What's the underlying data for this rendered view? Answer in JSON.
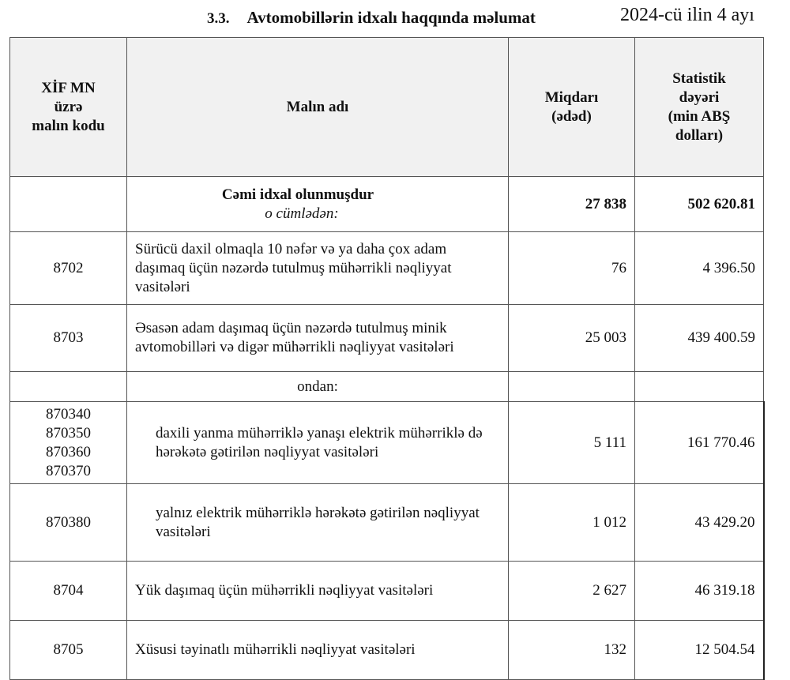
{
  "header": {
    "section_number": "3.3.",
    "title": "Avtomobillərin idxalı haqqında məlumat",
    "period": "2024-cü ilin 4 ayı"
  },
  "columns": [
    {
      "lines": [
        "XİF MN",
        "üzrə",
        "malın kodu"
      ]
    },
    {
      "lines": [
        "Malın adı"
      ]
    },
    {
      "lines": [
        "Miqdarı",
        "(ədəd)"
      ]
    },
    {
      "lines": [
        "Statistik",
        "dəyəri",
        "(min ABŞ",
        "dolları)"
      ]
    }
  ],
  "total": {
    "label": "Cəmi  idxal  olunmuşdur",
    "sublabel": "o cümlədən:",
    "quantity": "27 838",
    "value": "502 620.81"
  },
  "rows": [
    {
      "code": "8702",
      "name": "Sürücü daxil olmaqla 10 nəfər və ya daha çox adam daşımaq üçün nəzərdə tutulmuş mühərrikli nəqliyyat vasitələri",
      "quantity": "76",
      "value": "4 396.50"
    },
    {
      "code": "8703",
      "name": "Əsasən adam daşımaq üçün nəzərdə tutulmuş minik avtomobilləri və digər mühərrikli nəqliyyat vasitələri",
      "quantity": "25 003",
      "value": "439 400.59"
    }
  ],
  "ondan_label": "ondan:",
  "subrows": [
    {
      "codes": [
        "870340",
        "870350",
        "870360",
        "870370"
      ],
      "name": "daxili yanma mühərriklə yanaşı elektrik mühərriklə də hərəkətə gətirilən nəqliyyat vasitələri",
      "quantity": "5 111",
      "value": "161 770.46"
    },
    {
      "code": "870380",
      "name": "yalnız elektrik mühərriklə hərəkətə gətirilən nəqliyyat vasitələri",
      "quantity": "1 012",
      "value": "43 429.20"
    }
  ],
  "rows2": [
    {
      "code": "8704",
      "name": "Yük daşımaq üçün mühərrikli nəqliyyat vasitələri",
      "quantity": "2 627",
      "value": "46 319.18"
    },
    {
      "code": "8705",
      "name": "Xüsusi təyinatlı mühərrikli nəqliyyat vasitələri",
      "quantity": "132",
      "value": "12 504.54"
    }
  ]
}
